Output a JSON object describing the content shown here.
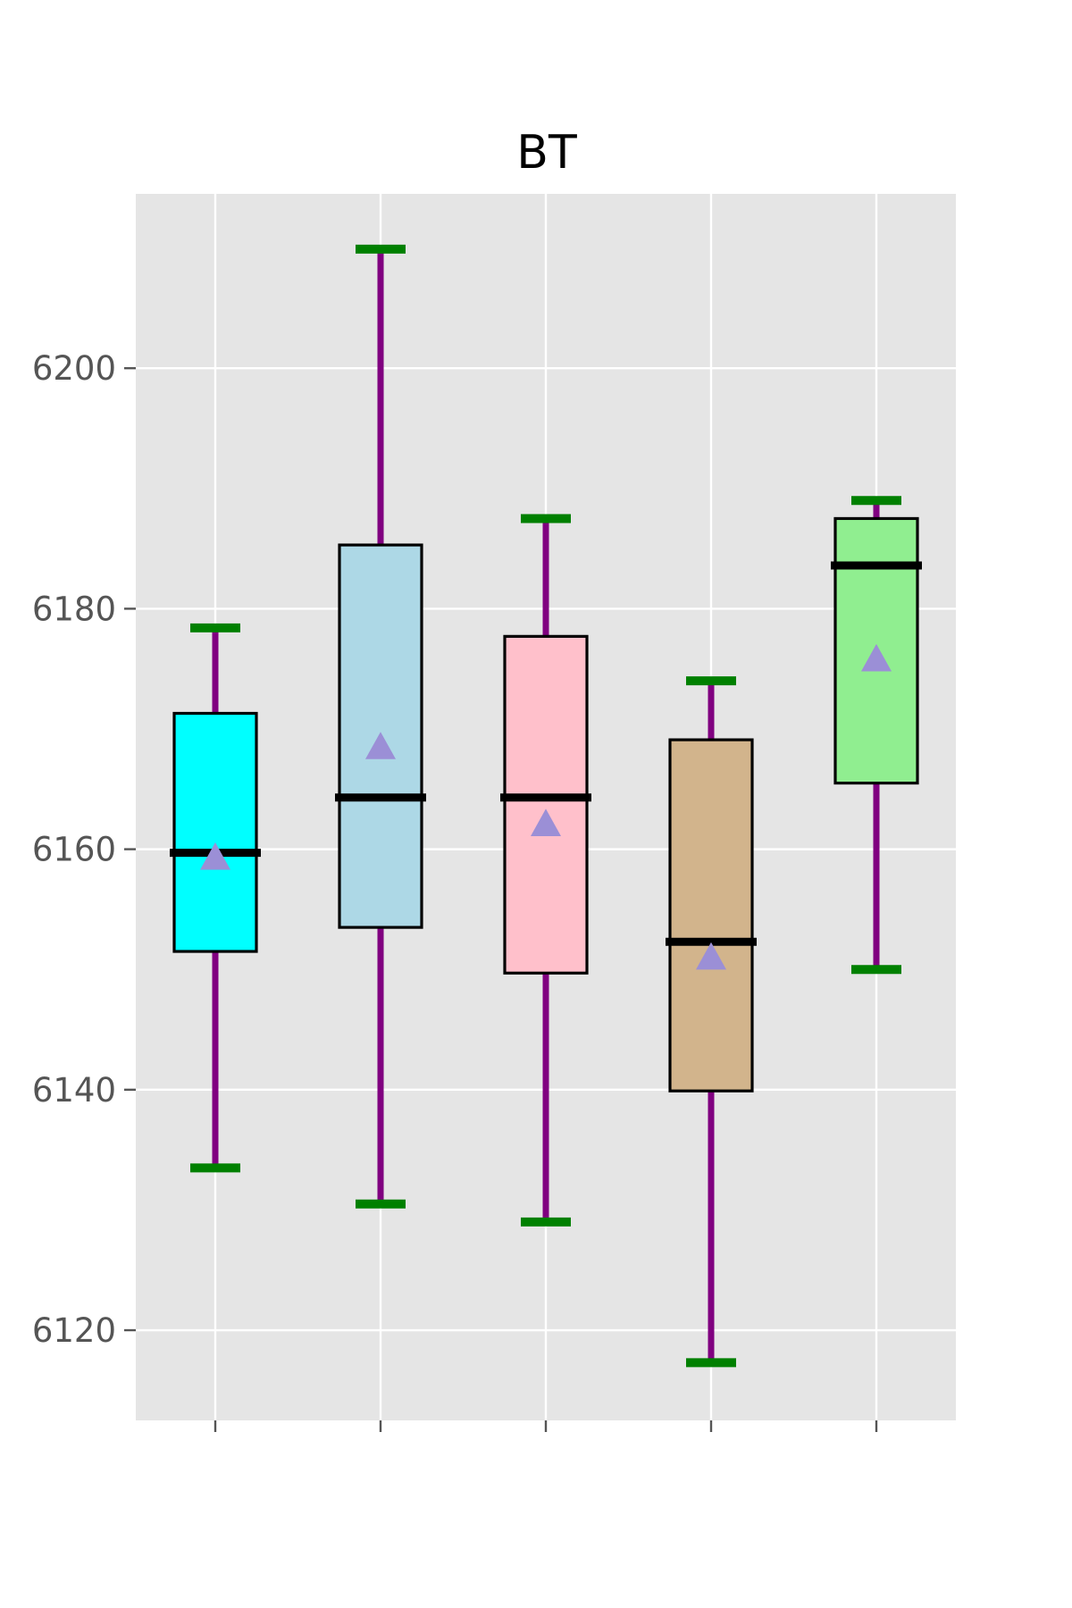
{
  "chart_data": {
    "type": "box",
    "title": "BT",
    "xlabel": "",
    "ylabel": "",
    "categories": [
      "",
      "",
      "",
      "",
      ""
    ],
    "ylim": [
      6112.5,
      6214.5
    ],
    "yticks": [
      6120,
      6140,
      6160,
      6180,
      6200
    ],
    "ytick_labels": [
      "6120",
      "6140",
      "6160",
      "6180",
      "6200"
    ],
    "grid": true,
    "legend": "none",
    "boxes": [
      {
        "whisker_low": 6133.5,
        "q1": 6151.5,
        "median": 6159.7,
        "q3": 6171.3,
        "whisker_high": 6178.4,
        "mean": 6159.3,
        "fill": "#00ffff"
      },
      {
        "whisker_low": 6130.5,
        "q1": 6153.5,
        "median": 6164.3,
        "q3": 6185.3,
        "whisker_high": 6209.9,
        "mean": 6168.5,
        "fill": "#add8e6"
      },
      {
        "whisker_low": 6129.0,
        "q1": 6149.7,
        "median": 6164.3,
        "q3": 6177.7,
        "whisker_high": 6187.5,
        "mean": 6162.1,
        "fill": "#ffc0cb"
      },
      {
        "whisker_low": 6117.3,
        "q1": 6139.9,
        "median": 6152.3,
        "q3": 6169.1,
        "whisker_high": 6174.0,
        "mean": 6151.0,
        "fill": "#d2b48c"
      },
      {
        "whisker_low": 6150.0,
        "q1": 6165.5,
        "median": 6183.6,
        "q3": 6187.5,
        "whisker_high": 6189.0,
        "mean": 6175.8,
        "fill": "#90ee90"
      }
    ],
    "colors": {
      "panel_background": "#e5e5e5",
      "grid": "#ffffff",
      "whisker": "#800080",
      "cap": "#008000",
      "median": "#000000",
      "mean_marker": "#9b8fd6",
      "box_edge": "#000000"
    }
  }
}
